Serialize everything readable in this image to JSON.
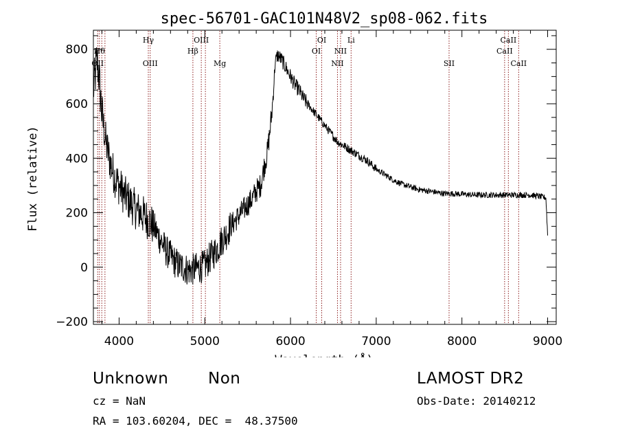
{
  "chart_data": {
    "type": "line",
    "title": "spec-56701-GAC101N48V2_sp08-062.fits",
    "xlabel": "Wavelength (Å)",
    "ylabel": "Flux (relative)",
    "xlim": [
      3700,
      9100
    ],
    "ylim": [
      -210,
      870
    ],
    "xticks": [
      {
        "value": 4000,
        "label": "4000"
      },
      {
        "value": 5000,
        "label": "5000"
      },
      {
        "value": 6000,
        "label": "6000"
      },
      {
        "value": 7000,
        "label": "7000"
      },
      {
        "value": 8000,
        "label": "8000"
      },
      {
        "value": 9000,
        "label": "9000"
      }
    ],
    "yticks": [
      {
        "value": -200,
        "label": "−200"
      },
      {
        "value": 0,
        "label": "0"
      },
      {
        "value": 200,
        "label": "200"
      },
      {
        "value": 400,
        "label": "400"
      },
      {
        "value": 600,
        "label": "600"
      },
      {
        "value": 800,
        "label": "800"
      }
    ],
    "x_minor_step": 200,
    "y_minor_step": 50,
    "grid": false,
    "line_color": "#000000",
    "marker_color": "#8b1a1a",
    "spectrum": {
      "x": [
        3700,
        3720,
        3740,
        3760,
        3780,
        3800,
        3850,
        3900,
        3950,
        4000,
        4050,
        4100,
        4150,
        4200,
        4250,
        4300,
        4350,
        4400,
        4450,
        4500,
        4550,
        4600,
        4650,
        4700,
        4750,
        4800,
        4850,
        4900,
        4950,
        5000,
        5050,
        5100,
        5150,
        5200,
        5250,
        5300,
        5350,
        5400,
        5450,
        5500,
        5550,
        5600,
        5650,
        5700,
        5730,
        5760,
        5780,
        5800,
        5820,
        5850,
        5900,
        5950,
        6000,
        6050,
        6100,
        6150,
        6200,
        6250,
        6300,
        6350,
        6400,
        6450,
        6500,
        6550,
        6600,
        6650,
        6700,
        6750,
        6800,
        6900,
        7000,
        7100,
        7200,
        7300,
        7400,
        7500,
        7600,
        7700,
        7800,
        7900,
        8000,
        8100,
        8200,
        8300,
        8400,
        8500,
        8600,
        8700,
        8800,
        8900,
        8980,
        9000
      ],
      "y": [
        650,
        700,
        760,
        720,
        640,
        560,
        450,
        380,
        330,
        300,
        270,
        250,
        230,
        210,
        200,
        185,
        170,
        150,
        120,
        90,
        60,
        40,
        20,
        5,
        0,
        -10,
        -10,
        -5,
        0,
        5,
        30,
        50,
        70,
        100,
        120,
        150,
        170,
        190,
        210,
        230,
        250,
        280,
        300,
        380,
        420,
        500,
        560,
        640,
        750,
        780,
        760,
        730,
        700,
        670,
        650,
        620,
        600,
        580,
        560,
        540,
        520,
        500,
        480,
        460,
        450,
        440,
        430,
        420,
        410,
        390,
        360,
        340,
        320,
        305,
        295,
        285,
        280,
        275,
        270,
        270,
        268,
        266,
        265,
        265,
        265,
        265,
        265,
        265,
        265,
        260,
        255,
        120
      ]
    },
    "lines": [
      {
        "x": 3750,
        "label": "OII",
        "row": 3
      },
      {
        "x": 3770,
        "label": "Hθ",
        "row": 2
      },
      {
        "x": 3798,
        "label": "",
        "row": 0
      },
      {
        "x": 3835,
        "label": "",
        "row": 0
      },
      {
        "x": 4341,
        "label": "Hγ",
        "row": 1
      },
      {
        "x": 4363,
        "label": "OIII",
        "row": 3
      },
      {
        "x": 4861,
        "label": "Hβ",
        "row": 2
      },
      {
        "x": 4959,
        "label": "OIII",
        "row": 1
      },
      {
        "x": 5007,
        "label": "",
        "row": 0
      },
      {
        "x": 5175,
        "label": "Mg",
        "row": 3
      },
      {
        "x": 6300,
        "label": "OI",
        "row": 2
      },
      {
        "x": 6364,
        "label": "OI",
        "row": 1
      },
      {
        "x": 6548,
        "label": "NII",
        "row": 3
      },
      {
        "x": 6584,
        "label": "NII",
        "row": 2
      },
      {
        "x": 6707,
        "label": "Li",
        "row": 1
      },
      {
        "x": 7850,
        "label": "SII",
        "row": 3
      },
      {
        "x": 8498,
        "label": "CaII",
        "row": 2
      },
      {
        "x": 8542,
        "label": "CaII",
        "row": 1
      },
      {
        "x": 8662,
        "label": "CaII",
        "row": 3
      }
    ]
  },
  "info": {
    "class": "Unknown",
    "subclass": "Non",
    "survey": "LAMOST DR2",
    "cz": "cz = NaN",
    "obs_date": "Obs-Date: 20140212",
    "coords": "RA = 103.60204, DEC =  48.37500"
  }
}
